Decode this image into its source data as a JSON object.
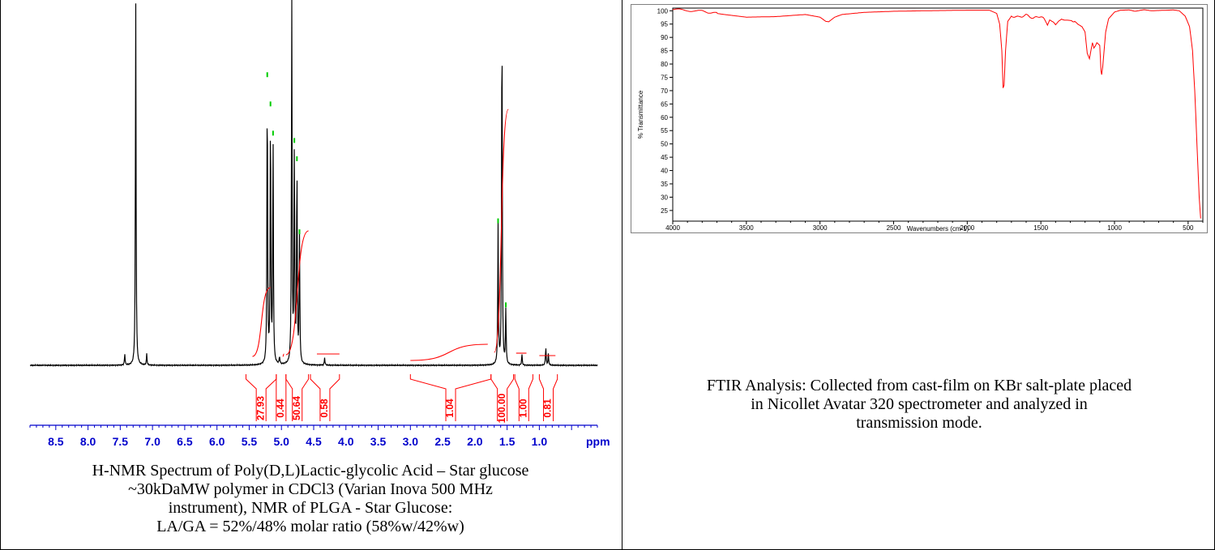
{
  "nmr": {
    "chart_data": {
      "type": "line",
      "xlabel": "ppm",
      "x_ticks": [
        "8.5",
        "8.0",
        "7.5",
        "7.0",
        "6.5",
        "6.0",
        "5.5",
        "5.0",
        "4.5",
        "4.0",
        "3.5",
        "3.0",
        "2.5",
        "2.0",
        "1.5",
        "1.0"
      ],
      "xlim": [
        8.9,
        0.1
      ],
      "x_reversed": true,
      "peaks": [
        {
          "ppm": 7.26,
          "height": 1.0
        },
        {
          "ppm": 7.43,
          "height": 0.03
        },
        {
          "ppm": 7.09,
          "height": 0.03
        },
        {
          "ppm": 5.22,
          "height": 0.78
        },
        {
          "ppm": 5.17,
          "height": 0.7
        },
        {
          "ppm": 5.13,
          "height": 0.62
        },
        {
          "ppm": 5.03,
          "height": 0.02
        },
        {
          "ppm": 4.84,
          "height": 1.0
        },
        {
          "ppm": 4.8,
          "height": 0.6
        },
        {
          "ppm": 4.76,
          "height": 0.55
        },
        {
          "ppm": 4.72,
          "height": 0.35
        },
        {
          "ppm": 4.33,
          "height": 0.02
        },
        {
          "ppm": 1.64,
          "height": 0.38
        },
        {
          "ppm": 1.58,
          "height": 1.0
        },
        {
          "ppm": 1.52,
          "height": 0.15
        },
        {
          "ppm": 1.27,
          "height": 0.03
        },
        {
          "ppm": 0.9,
          "height": 0.05
        },
        {
          "ppm": 0.86,
          "height": 0.03
        }
      ],
      "integrals": [
        {
          "label": "27.93",
          "from": 5.55,
          "to": 5.08
        },
        {
          "label": "0.44",
          "from": 5.08,
          "to": 4.93
        },
        {
          "label": "50.64",
          "from": 4.93,
          "to": 4.58
        },
        {
          "label": "0.58",
          "from": 4.55,
          "to": 4.1
        },
        {
          "label": "1.04",
          "from": 3.0,
          "to": 1.75
        },
        {
          "label": "100.00",
          "from": 1.75,
          "to": 1.4
        },
        {
          "label": "1.00",
          "from": 1.38,
          "to": 1.1
        },
        {
          "label": "0.81",
          "from": 1.0,
          "to": 0.72
        }
      ]
    },
    "caption": [
      "H-NMR Spectrum of Poly(D,L)Lactic-glycolic Acid – Star glucose",
      "~30kDaMW polymer in CDCl3 (Varian Inova 500 MHz",
      "instrument), NMR of PLGA - Star Glucose:",
      "LA/GA = 52%/48% molar ratio (58%w/42%w)"
    ]
  },
  "ftir": {
    "chart_data": {
      "type": "line",
      "xlabel": "Wavenumbers (cm-1)",
      "ylabel": "% Transmittance",
      "xlim": [
        4000,
        400
      ],
      "ylim": [
        21,
        101
      ],
      "x_ticks": [
        4000,
        3500,
        3000,
        2500,
        2000,
        1500,
        1000,
        500
      ],
      "y_ticks": [
        100,
        95,
        90,
        85,
        80,
        75,
        70,
        65,
        60,
        55,
        50,
        45,
        40,
        35,
        30,
        25
      ],
      "series": [
        {
          "color": "#ff0000",
          "points": [
            [
              4000,
              100.5
            ],
            [
              3800,
              99.8
            ],
            [
              3650,
              98.6
            ],
            [
              3500,
              97.6
            ],
            [
              3300,
              97.8
            ],
            [
              3100,
              98.6
            ],
            [
              3000,
              97.6
            ],
            [
              2960,
              96.0
            ],
            [
              2940,
              95.9
            ],
            [
              2900,
              97.6
            ],
            [
              2850,
              98.6
            ],
            [
              2700,
              99.4
            ],
            [
              2500,
              99.8
            ],
            [
              2300,
              100.0
            ],
            [
              2000,
              100.2
            ],
            [
              1850,
              100.2
            ],
            [
              1800,
              99.0
            ],
            [
              1780,
              95.0
            ],
            [
              1765,
              85.0
            ],
            [
              1757,
              71.0
            ],
            [
              1750,
              72.0
            ],
            [
              1740,
              85.0
            ],
            [
              1725,
              96.0
            ],
            [
              1700,
              98.0
            ],
            [
              1650,
              97.6
            ],
            [
              1600,
              98.4
            ],
            [
              1550,
              97.2
            ],
            [
              1500,
              98.0
            ],
            [
              1470,
              96.4
            ],
            [
              1455,
              94.4
            ],
            [
              1440,
              96.2
            ],
            [
              1425,
              95.8
            ],
            [
              1400,
              94.8
            ],
            [
              1380,
              96.4
            ],
            [
              1360,
              97.2
            ],
            [
              1340,
              96.6
            ],
            [
              1300,
              96.0
            ],
            [
              1270,
              96.2
            ],
            [
              1250,
              95.0
            ],
            [
              1220,
              94.0
            ],
            [
              1200,
              92.0
            ],
            [
              1185,
              84.0
            ],
            [
              1170,
              82.0
            ],
            [
              1150,
              88.0
            ],
            [
              1140,
              86.0
            ],
            [
              1130,
              86.8
            ],
            [
              1120,
              88.0
            ],
            [
              1100,
              87.0
            ],
            [
              1092,
              77.5
            ],
            [
              1087,
              76.0
            ],
            [
              1080,
              79.0
            ],
            [
              1060,
              92.0
            ],
            [
              1040,
              97.0
            ],
            [
              1000,
              99.5
            ],
            [
              960,
              100.2
            ],
            [
              900,
              100.3
            ],
            [
              860,
              99.8
            ],
            [
              800,
              100.4
            ],
            [
              750,
              100.0
            ],
            [
              700,
              100.1
            ],
            [
              600,
              100.3
            ],
            [
              560,
              100.0
            ],
            [
              520,
              98.0
            ],
            [
              490,
              94.0
            ],
            [
              470,
              85.0
            ],
            [
              455,
              70.0
            ],
            [
              440,
              50.0
            ],
            [
              425,
              30.0
            ],
            [
              415,
              22.0
            ]
          ]
        }
      ]
    },
    "caption": [
      "FTIR Analysis: Collected from cast-film on KBr salt-plate placed",
      "in Nicollet Avatar 320  spectrometer and analyzed in",
      "transmission mode."
    ]
  },
  "colors": {
    "nmr_spectrum": "#000000",
    "nmr_integral": "#ff0000",
    "nmr_peak_marker": "#00cc00",
    "nmr_axis": "#0000cc",
    "ftir_line": "#ff0000"
  }
}
